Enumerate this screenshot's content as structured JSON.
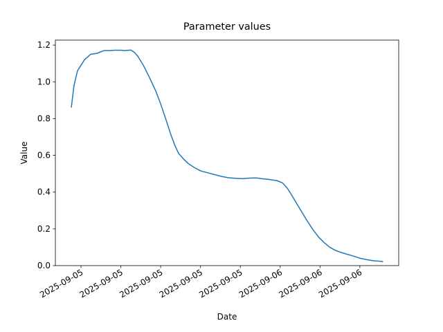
{
  "chart_data": {
    "type": "line",
    "title": "Parameter values",
    "x_label": "Date",
    "y_label": "Value",
    "x": [
      3.03,
      3.3,
      3.65,
      4.35,
      4.97,
      5.6,
      6.3,
      6.99,
      7.34,
      8.03,
      8.38,
      9.01,
      9.36,
      9.7,
      10.26,
      10.82,
      11.51,
      12.0,
      12.56,
      13.04,
      13.46,
      13.81,
      14.3,
      14.78,
      15.34,
      16.03,
      16.73,
      17.43,
      18.12,
      18.82,
      19.51,
      20.21,
      20.9,
      21.6,
      22.3,
      22.99,
      23.69,
      24.24,
      24.73,
      25.08,
      25.63,
      26.19,
      26.75,
      27.3,
      27.86,
      28.42,
      28.97,
      29.53,
      30.09,
      30.64,
      31.34,
      32.03,
      32.73,
      33.43,
      33.98,
      34.33
    ],
    "series": [
      {
        "name": "Value",
        "color": "#1f77b4",
        "values": [
          0.86,
          0.98,
          1.06,
          1.12,
          1.15,
          1.155,
          1.17,
          1.17,
          1.172,
          1.172,
          1.17,
          1.173,
          1.16,
          1.14,
          1.09,
          1.03,
          0.95,
          0.88,
          0.79,
          0.71,
          0.65,
          0.61,
          0.58,
          0.555,
          0.535,
          0.515,
          0.505,
          0.495,
          0.485,
          0.478,
          0.475,
          0.473,
          0.476,
          0.477,
          0.472,
          0.468,
          0.462,
          0.45,
          0.42,
          0.39,
          0.34,
          0.29,
          0.24,
          0.195,
          0.155,
          0.125,
          0.1,
          0.083,
          0.072,
          0.063,
          0.052,
          0.04,
          0.032,
          0.026,
          0.024,
          0.021
        ]
      }
    ],
    "xlim": [
      1.43,
      35.9
    ],
    "xticks": [
      {
        "value": 4,
        "label": "2025-09-05"
      },
      {
        "value": 8,
        "label": "2025-09-05"
      },
      {
        "value": 12,
        "label": "2025-09-05"
      },
      {
        "value": 16,
        "label": "2025-09-05"
      },
      {
        "value": 20,
        "label": "2025-09-05"
      },
      {
        "value": 24,
        "label": "2025-09-06"
      },
      {
        "value": 28,
        "label": "2025-09-06"
      },
      {
        "value": 32,
        "label": "2025-09-06"
      }
    ],
    "ylim": [
      0,
      1.227
    ],
    "yticks": [
      {
        "value": 0,
        "label": "0.0"
      },
      {
        "value": 0.2,
        "label": "0.2"
      },
      {
        "value": 0.4,
        "label": "0.4"
      },
      {
        "value": 0.6,
        "label": "0.6"
      },
      {
        "value": 0.8,
        "label": "0.8"
      },
      {
        "value": 1.0,
        "label": "1.0"
      },
      {
        "value": 1.2,
        "label": "1.2"
      }
    ],
    "grid": false
  }
}
